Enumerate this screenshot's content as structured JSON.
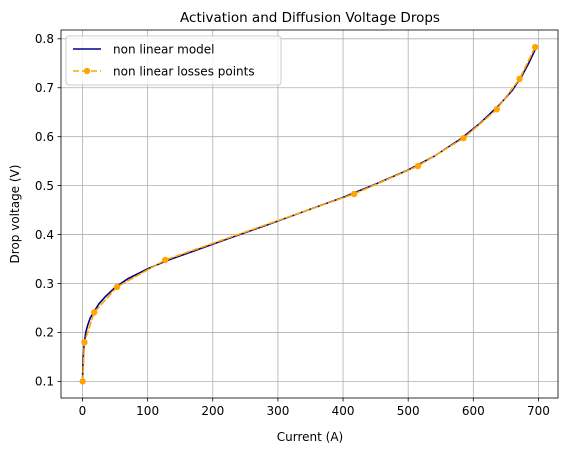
{
  "chart_data": {
    "type": "line",
    "title": "Activation and Diffusion Voltage Drops",
    "xlabel": "Current (A)",
    "ylabel": "Drop voltage (V)",
    "xlim": [
      -33,
      730
    ],
    "ylim": [
      0.066,
      0.818
    ],
    "xticks": [
      0,
      100,
      200,
      300,
      400,
      500,
      600,
      700
    ],
    "yticks": [
      0.1,
      0.2,
      0.3,
      0.4,
      0.5,
      0.6,
      0.7,
      0.8
    ],
    "grid": true,
    "legend_position": "top-left",
    "series": [
      {
        "name": "non linear model",
        "style": "solid",
        "color": "#00008b",
        "x": [
          0.2,
          0.5,
          1,
          2,
          3,
          5,
          8,
          12,
          18,
          25,
          35,
          50,
          70,
          100,
          130,
          170,
          220,
          280,
          340,
          400,
          450,
          500,
          540,
          580,
          610,
          640,
          660,
          675,
          685,
          695
        ],
        "y": [
          0.105,
          0.125,
          0.145,
          0.165,
          0.18,
          0.2,
          0.215,
          0.23,
          0.243,
          0.258,
          0.273,
          0.292,
          0.31,
          0.33,
          0.347,
          0.366,
          0.39,
          0.418,
          0.447,
          0.476,
          0.503,
          0.532,
          0.56,
          0.595,
          0.627,
          0.665,
          0.695,
          0.725,
          0.75,
          0.778
        ]
      },
      {
        "name": "non linear losses points",
        "style": "dashed",
        "marker": "circle",
        "color": "#ffa500",
        "x": [
          0.3,
          3,
          18,
          53,
          127,
          417,
          515,
          585,
          636,
          671,
          695
        ],
        "y": [
          0.1,
          0.18,
          0.241,
          0.293,
          0.348,
          0.483,
          0.54,
          0.597,
          0.656,
          0.718,
          0.783
        ]
      }
    ]
  }
}
